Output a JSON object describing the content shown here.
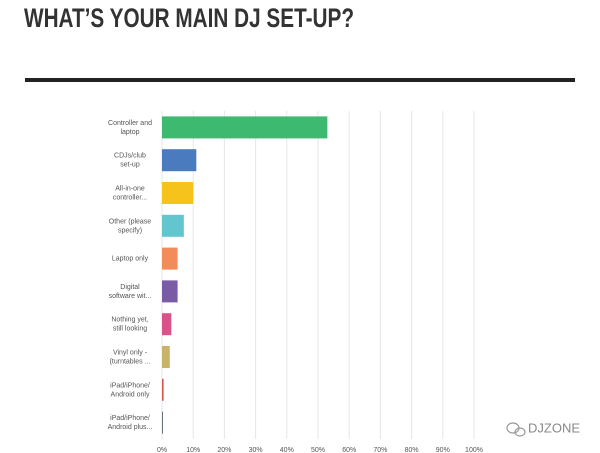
{
  "chart_data": {
    "type": "bar",
    "orientation": "horizontal",
    "title": "WHAT’S YOUR MAIN DJ SET-UP?",
    "categories": [
      "Controller and\nlaptop",
      "CDJs/club\nset-up",
      "All-in-one\ncontroller...",
      "Other (please\nspecify)",
      "Laptop only",
      "Digital\nsoftware wit...",
      "Nothing yet,\nstill looking",
      "Vinyl only -\n(turntables ...",
      "iPad/iPhone/\nAndroid only",
      "iPad/iPhone/\nAndroid plus..."
    ],
    "values": [
      53,
      11,
      10,
      7,
      5,
      5,
      3,
      2.5,
      0.5,
      0.3
    ],
    "colors": [
      "#3dba6f",
      "#4a7bbf",
      "#f5c31b",
      "#63c6cf",
      "#f28c5b",
      "#7a5ba6",
      "#d9538a",
      "#cbb26a",
      "#d9534f",
      "#5d6b78"
    ],
    "xlim": [
      0,
      100
    ],
    "xticks": [
      {
        "value": 0,
        "label": "0%"
      },
      {
        "value": 10,
        "label": "10%"
      },
      {
        "value": 20,
        "label": "20%"
      },
      {
        "value": 30,
        "label": "30%"
      },
      {
        "value": 40,
        "label": "40%"
      },
      {
        "value": 50,
        "label": "50%"
      },
      {
        "value": 60,
        "label": "60%"
      },
      {
        "value": 70,
        "label": "70%"
      },
      {
        "value": 80,
        "label": "80%"
      },
      {
        "value": 90,
        "label": "90%"
      },
      {
        "value": 100,
        "label": "100%"
      }
    ],
    "grid": true,
    "watermark": "DJZONE"
  }
}
